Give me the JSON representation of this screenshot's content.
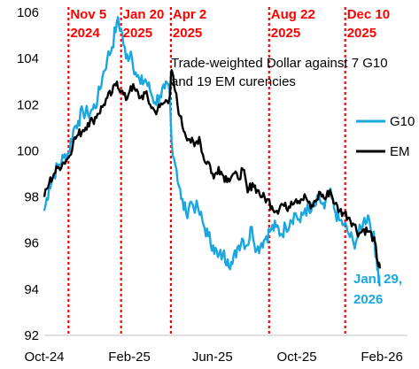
{
  "chart_data": {
    "type": "line",
    "title": "",
    "annotation_lines": [
      "Trade-weighted Dollar against 7 G10",
      "and 19 EM curencies"
    ],
    "xlabel": "",
    "ylabel": "",
    "ylim": [
      92,
      106
    ],
    "yticks": [
      92,
      94,
      96,
      98,
      100,
      102,
      104,
      106
    ],
    "xlim": [
      "2024-10-01",
      "2026-03-10"
    ],
    "xticks": [
      {
        "date": "2024-10-01",
        "label": "Oct-24"
      },
      {
        "date": "2025-02-01",
        "label": "Feb-25"
      },
      {
        "date": "2025-06-01",
        "label": "Jun-25"
      },
      {
        "date": "2025-10-01",
        "label": "Oct-25"
      },
      {
        "date": "2026-02-01",
        "label": "Feb-26"
      }
    ],
    "events": [
      {
        "date": "2024-11-05",
        "label1": "Nov 5",
        "label2": "2024"
      },
      {
        "date": "2025-01-20",
        "label1": "Jan 20",
        "label2": "2025"
      },
      {
        "date": "2025-04-02",
        "label1": "Apr 2",
        "label2": "2025"
      },
      {
        "date": "2025-08-22",
        "label1": "Aug 22",
        "label2": "2025"
      },
      {
        "date": "2025-12-10",
        "label1": "Dec 10",
        "label2": "2025"
      }
    ],
    "legend_position": "right",
    "end_label_lines": [
      "Jan. 29,",
      "2026"
    ],
    "series": [
      {
        "name": "G10",
        "color": "#1aa7e0",
        "points": [
          [
            "2024-10-01",
            97.4
          ],
          [
            "2024-10-08",
            98.4
          ],
          [
            "2024-10-15",
            99.0
          ],
          [
            "2024-10-22",
            99.4
          ],
          [
            "2024-10-29",
            99.7
          ],
          [
            "2024-11-05",
            99.9
          ],
          [
            "2024-11-12",
            100.9
          ],
          [
            "2024-11-19",
            101.3
          ],
          [
            "2024-11-26",
            101.7
          ],
          [
            "2024-12-03",
            101.6
          ],
          [
            "2024-12-10",
            101.8
          ],
          [
            "2024-12-17",
            102.2
          ],
          [
            "2024-12-24",
            103.2
          ],
          [
            "2024-12-31",
            104.0
          ],
          [
            "2025-01-07",
            104.5
          ],
          [
            "2025-01-14",
            105.6
          ],
          [
            "2025-01-20",
            105.3
          ],
          [
            "2025-01-27",
            104.0
          ],
          [
            "2025-02-03",
            104.3
          ],
          [
            "2025-02-10",
            103.4
          ],
          [
            "2025-02-17",
            102.9
          ],
          [
            "2025-02-24",
            103.1
          ],
          [
            "2025-03-03",
            102.6
          ],
          [
            "2025-03-10",
            102.1
          ],
          [
            "2025-03-17",
            102.4
          ],
          [
            "2025-03-24",
            102.7
          ],
          [
            "2025-03-31",
            102.6
          ],
          [
            "2025-04-03",
            100.4
          ],
          [
            "2025-04-10",
            99.2
          ],
          [
            "2025-04-17",
            97.9
          ],
          [
            "2025-04-24",
            97.3
          ],
          [
            "2025-05-01",
            97.8
          ],
          [
            "2025-05-12",
            97.4
          ],
          [
            "2025-05-19",
            96.8
          ],
          [
            "2025-05-26",
            96.3
          ],
          [
            "2025-06-02",
            95.9
          ],
          [
            "2025-06-09",
            95.4
          ],
          [
            "2025-06-16",
            95.5
          ],
          [
            "2025-06-23",
            95.3
          ],
          [
            "2025-06-30",
            95.1
          ],
          [
            "2025-07-07",
            95.8
          ],
          [
            "2025-07-14",
            96.2
          ],
          [
            "2025-07-21",
            95.9
          ],
          [
            "2025-07-28",
            96.7
          ],
          [
            "2025-08-04",
            95.7
          ],
          [
            "2025-08-11",
            96.0
          ],
          [
            "2025-08-18",
            96.3
          ],
          [
            "2025-08-25",
            96.6
          ],
          [
            "2025-09-01",
            96.7
          ],
          [
            "2025-09-08",
            96.4
          ],
          [
            "2025-09-15",
            96.7
          ],
          [
            "2025-09-22",
            97.0
          ],
          [
            "2025-09-29",
            97.3
          ],
          [
            "2025-10-06",
            96.9
          ],
          [
            "2025-10-13",
            97.5
          ],
          [
            "2025-10-20",
            97.3
          ],
          [
            "2025-10-27",
            97.6
          ],
          [
            "2025-11-03",
            97.9
          ],
          [
            "2025-11-10",
            97.5
          ],
          [
            "2025-11-17",
            98.2
          ],
          [
            "2025-11-24",
            97.5
          ],
          [
            "2025-12-01",
            97.0
          ],
          [
            "2025-12-08",
            96.8
          ],
          [
            "2025-12-15",
            96.4
          ],
          [
            "2025-12-22",
            96.0
          ],
          [
            "2025-12-29",
            96.3
          ],
          [
            "2026-01-05",
            96.9
          ],
          [
            "2026-01-12",
            97.2
          ],
          [
            "2026-01-19",
            96.4
          ],
          [
            "2026-01-24",
            95.5
          ],
          [
            "2026-01-27",
            94.6
          ],
          [
            "2026-01-29",
            94.2
          ]
        ]
      },
      {
        "name": "EM",
        "color": "#000000",
        "points": [
          [
            "2024-10-01",
            98.0
          ],
          [
            "2024-10-08",
            98.6
          ],
          [
            "2024-10-15",
            99.0
          ],
          [
            "2024-10-22",
            99.3
          ],
          [
            "2024-10-29",
            99.5
          ],
          [
            "2024-11-05",
            99.7
          ],
          [
            "2024-11-12",
            100.4
          ],
          [
            "2024-11-19",
            100.7
          ],
          [
            "2024-11-26",
            100.9
          ],
          [
            "2024-12-03",
            101.2
          ],
          [
            "2024-12-10",
            101.3
          ],
          [
            "2024-12-17",
            101.6
          ],
          [
            "2024-12-24",
            101.9
          ],
          [
            "2024-12-31",
            102.3
          ],
          [
            "2025-01-07",
            102.5
          ],
          [
            "2025-01-14",
            103.0
          ],
          [
            "2025-01-20",
            102.6
          ],
          [
            "2025-01-27",
            102.2
          ],
          [
            "2025-02-03",
            102.8
          ],
          [
            "2025-02-10",
            102.6
          ],
          [
            "2025-02-17",
            102.3
          ],
          [
            "2025-02-24",
            102.5
          ],
          [
            "2025-03-03",
            102.0
          ],
          [
            "2025-03-10",
            101.7
          ],
          [
            "2025-03-17",
            101.9
          ],
          [
            "2025-03-24",
            102.1
          ],
          [
            "2025-03-31",
            102.3
          ],
          [
            "2025-04-03",
            103.5
          ],
          [
            "2025-04-08",
            102.6
          ],
          [
            "2025-04-15",
            101.5
          ],
          [
            "2025-04-22",
            100.8
          ],
          [
            "2025-04-29",
            100.5
          ],
          [
            "2025-05-06",
            100.2
          ],
          [
            "2025-05-13",
            100.6
          ],
          [
            "2025-05-20",
            99.6
          ],
          [
            "2025-05-27",
            99.5
          ],
          [
            "2025-06-03",
            98.8
          ],
          [
            "2025-06-10",
            99.3
          ],
          [
            "2025-06-17",
            98.9
          ],
          [
            "2025-06-24",
            98.8
          ],
          [
            "2025-07-01",
            99.0
          ],
          [
            "2025-07-08",
            98.8
          ],
          [
            "2025-07-15",
            99.2
          ],
          [
            "2025-07-22",
            98.2
          ],
          [
            "2025-07-29",
            98.6
          ],
          [
            "2025-08-05",
            98.3
          ],
          [
            "2025-08-12",
            98.0
          ],
          [
            "2025-08-19",
            97.9
          ],
          [
            "2025-08-26",
            97.6
          ],
          [
            "2025-09-02",
            97.4
          ],
          [
            "2025-09-09",
            97.7
          ],
          [
            "2025-09-16",
            97.5
          ],
          [
            "2025-09-23",
            97.8
          ],
          [
            "2025-09-30",
            97.9
          ],
          [
            "2025-10-07",
            97.9
          ],
          [
            "2025-10-14",
            98.0
          ],
          [
            "2025-10-21",
            97.5
          ],
          [
            "2025-10-28",
            97.8
          ],
          [
            "2025-11-04",
            98.2
          ],
          [
            "2025-11-11",
            97.9
          ],
          [
            "2025-11-18",
            98.3
          ],
          [
            "2025-11-25",
            97.7
          ],
          [
            "2025-12-02",
            97.4
          ],
          [
            "2025-12-09",
            97.3
          ],
          [
            "2025-12-16",
            97.1
          ],
          [
            "2025-12-23",
            96.8
          ],
          [
            "2025-12-30",
            96.4
          ],
          [
            "2026-01-06",
            96.6
          ],
          [
            "2026-01-13",
            96.5
          ],
          [
            "2026-01-20",
            96.2
          ],
          [
            "2026-01-24",
            95.6
          ],
          [
            "2026-01-27",
            95.0
          ],
          [
            "2026-01-29",
            94.9
          ]
        ]
      }
    ]
  }
}
